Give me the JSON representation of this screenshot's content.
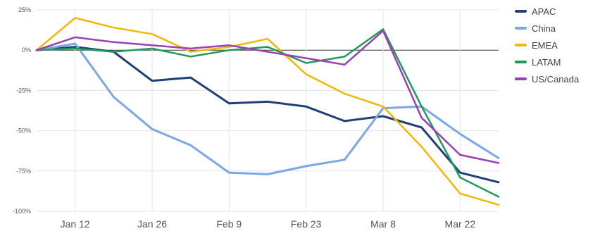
{
  "chart_data": {
    "type": "line",
    "title": "",
    "xlabel": "",
    "ylabel": "",
    "x": [
      "Jan 5",
      "Jan 12",
      "Jan 19",
      "Jan 26",
      "Feb 2",
      "Feb 9",
      "Feb 16",
      "Feb 23",
      "Mar 1",
      "Mar 8",
      "Mar 15",
      "Mar 22",
      "Mar 29"
    ],
    "x_tick_labels": [
      "Jan 12",
      "Jan 26",
      "Feb 9",
      "Feb 23",
      "Mar 8",
      "Mar 22"
    ],
    "y_tick_labels": [
      "25%",
      "0%",
      "-25%",
      "-50%",
      "-75%",
      "-100%"
    ],
    "ylim": [
      -100,
      25
    ],
    "y_unit": "%",
    "grid": true,
    "zero_line": true,
    "legend_position": "right",
    "series": [
      {
        "name": "APAC",
        "color": "#1f3f7a",
        "values": [
          0,
          2,
          -1,
          -19,
          -17,
          -33,
          -32,
          -35,
          -44,
          -41,
          -48,
          -76,
          -82
        ]
      },
      {
        "name": "China",
        "color": "#7aa7e6",
        "values": [
          0,
          4,
          -29,
          -49,
          -59,
          -76,
          -77,
          -72,
          -68,
          -36,
          -35,
          -52,
          -67
        ]
      },
      {
        "name": "EMEA",
        "color": "#f2b705",
        "values": [
          0,
          20,
          14,
          10,
          -1,
          2,
          7,
          -15,
          -27,
          -35,
          -60,
          -89,
          -96
        ]
      },
      {
        "name": "LATAM",
        "color": "#1f9a5b",
        "values": [
          0,
          1,
          -1,
          1,
          -4,
          0,
          2,
          -8,
          -4,
          13,
          -35,
          -79,
          -91
        ]
      },
      {
        "name": "US/Canada",
        "color": "#9b3fb5",
        "values": [
          0,
          8,
          5,
          3,
          1,
          3,
          -1,
          -5,
          -9,
          12,
          -42,
          -65,
          -70
        ]
      }
    ]
  }
}
